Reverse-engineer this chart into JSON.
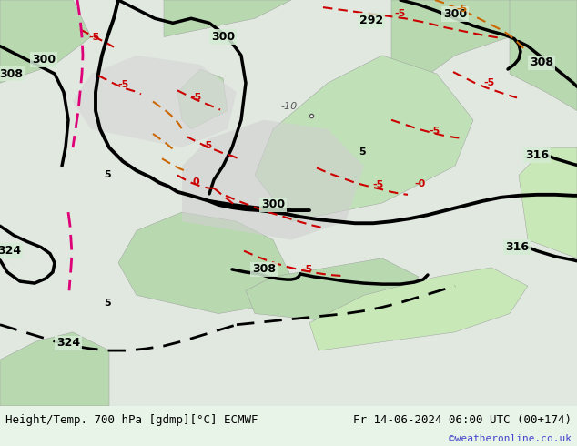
{
  "title_left": "Height/Temp. 700 hPa [gdmp][°C] ECMWF",
  "title_right": "Fr 14-06-2024 06:00 UTC (00+174)",
  "credit": "©weatheronline.co.uk",
  "bg_color": "#e8f4e8",
  "map_bg": "#d4ecd4",
  "credit_color": "#4444cc",
  "fig_width": 6.34,
  "fig_height": 4.9
}
